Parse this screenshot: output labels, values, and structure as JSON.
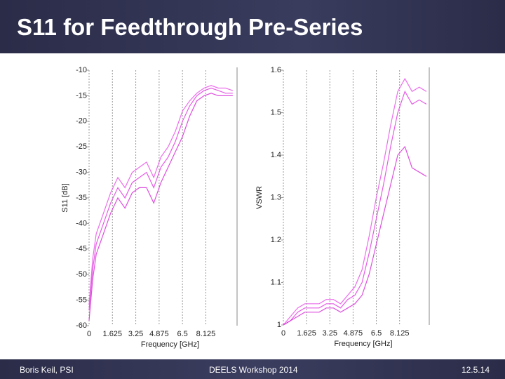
{
  "title": "S11 for Feedthrough Pre-Series",
  "footer": {
    "left": "Boris Keil, PSI",
    "center": "DEELS Workshop 2014",
    "right": "12.5.14"
  },
  "chart_data": [
    {
      "type": "line",
      "ylabel": "S11 [dB]",
      "xlabel": "Frequency [GHz]",
      "xlim": [
        0,
        10.3
      ],
      "xticks": [
        0,
        1.625,
        3.25,
        4.875,
        6.5,
        8.125
      ],
      "ylim": [
        -60,
        -10
      ],
      "yticks": [
        -10,
        -15,
        -20,
        -25,
        -30,
        -35,
        -40,
        -45,
        -50,
        -55,
        -60
      ],
      "grid": "x",
      "x": [
        0,
        0.25,
        0.5,
        1,
        1.5,
        2,
        2.5,
        3,
        3.5,
        4,
        4.5,
        5,
        5.5,
        6,
        6.5,
        7,
        7.5,
        8,
        8.5,
        9,
        9.5,
        10
      ],
      "series": [
        {
          "color": "#e040e0",
          "values": [
            -57,
            -49,
            -44,
            -40,
            -36,
            -33,
            -35,
            -32,
            -31,
            -30,
            -33,
            -29,
            -27,
            -24,
            -20,
            -17,
            -15,
            -14,
            -13.5,
            -14,
            -14.5,
            -14.5
          ]
        },
        {
          "color": "#e855e8",
          "values": [
            -56,
            -47,
            -42,
            -38,
            -34,
            -31,
            -33,
            -30,
            -29,
            -28,
            -31,
            -27,
            -25,
            -22,
            -18,
            -16,
            -14.5,
            -13.5,
            -13,
            -13.5,
            -13.5,
            -14
          ]
        },
        {
          "color": "#d830d8",
          "values": [
            -59,
            -51,
            -46,
            -42,
            -38,
            -35,
            -37,
            -34,
            -33,
            -33,
            -36,
            -32,
            -29,
            -26,
            -23,
            -19,
            -16,
            -15,
            -14.5,
            -15,
            -15,
            -15
          ]
        }
      ]
    },
    {
      "type": "line",
      "ylabel": "VSWR",
      "xlabel": "Frequency [GHz]",
      "xlim": [
        0,
        10.2
      ],
      "xticks": [
        0,
        1.625,
        3.25,
        4.875,
        6.5,
        8.125
      ],
      "ylim": [
        1,
        1.6
      ],
      "yticks": [
        1,
        1.1,
        1.2,
        1.3,
        1.4,
        1.5,
        1.6
      ],
      "grid": "x",
      "x": [
        0,
        0.5,
        1,
        1.5,
        2,
        2.5,
        3,
        3.5,
        4,
        4.5,
        5,
        5.5,
        6,
        6.5,
        7,
        7.5,
        8,
        8.5,
        9,
        9.5,
        10
      ],
      "series": [
        {
          "color": "#e040e0",
          "values": [
            1,
            1.01,
            1.03,
            1.04,
            1.04,
            1.04,
            1.05,
            1.05,
            1.04,
            1.06,
            1.07,
            1.1,
            1.17,
            1.25,
            1.33,
            1.42,
            1.5,
            1.55,
            1.52,
            1.53,
            1.52
          ]
        },
        {
          "color": "#e855e8",
          "values": [
            1,
            1.02,
            1.04,
            1.05,
            1.05,
            1.05,
            1.06,
            1.06,
            1.05,
            1.07,
            1.09,
            1.13,
            1.21,
            1.3,
            1.38,
            1.47,
            1.55,
            1.58,
            1.55,
            1.56,
            1.55
          ]
        },
        {
          "color": "#d830d8",
          "values": [
            1,
            1.01,
            1.02,
            1.03,
            1.03,
            1.03,
            1.04,
            1.04,
            1.03,
            1.04,
            1.05,
            1.07,
            1.12,
            1.19,
            1.26,
            1.33,
            1.4,
            1.42,
            1.37,
            1.36,
            1.35
          ]
        }
      ]
    }
  ]
}
